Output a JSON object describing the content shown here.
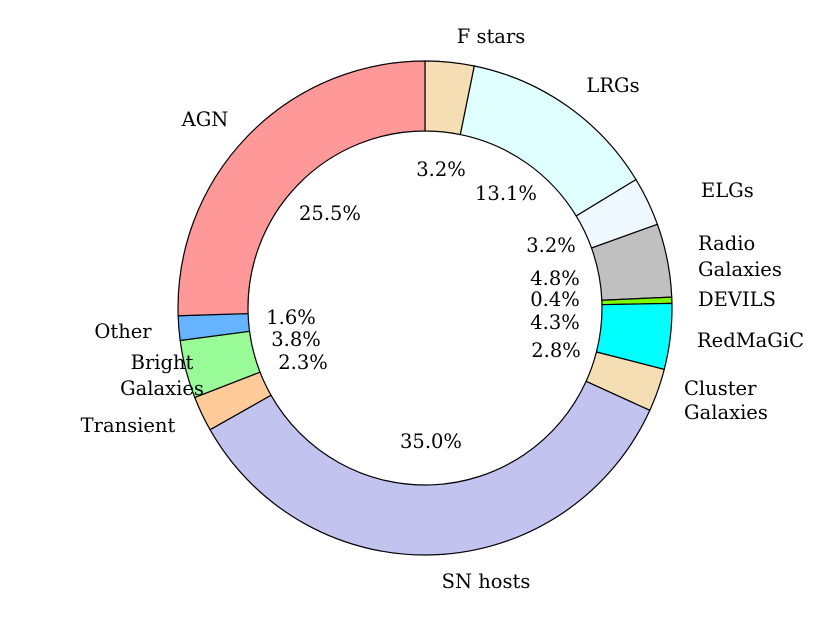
{
  "chart_data": {
    "type": "pie",
    "donut": true,
    "start_angle_deg": 90,
    "direction": "clockwise",
    "slices": [
      {
        "label": "F stars",
        "value": 3.2,
        "pct_label": "3.2%",
        "color": "#f5deb3"
      },
      {
        "label": "LRGs",
        "value": 13.1,
        "pct_label": "13.1%",
        "color": "#e0ffff"
      },
      {
        "label": "ELGs",
        "value": 3.2,
        "pct_label": "3.2%",
        "color": "#f0f8ff"
      },
      {
        "label": "Radio Galaxies",
        "value": 4.8,
        "pct_label": "4.8%",
        "color": "#c0c0c0"
      },
      {
        "label": "DEVILS",
        "value": 0.4,
        "pct_label": "0.4%",
        "color": "#7cfc00"
      },
      {
        "label": "RedMaGiC",
        "value": 4.3,
        "pct_label": "4.3%",
        "color": "#00ffff"
      },
      {
        "label": "Cluster Galaxies",
        "value": 2.8,
        "pct_label": "2.8%",
        "color": "#f5deb3"
      },
      {
        "label": "SN hosts",
        "value": 35.0,
        "pct_label": "35.0%",
        "color": "#c3c3f0"
      },
      {
        "label": "Transient",
        "value": 2.3,
        "pct_label": "2.3%",
        "color": "#ffcc99"
      },
      {
        "label": "Bright Galaxies",
        "value": 3.8,
        "pct_label": "3.8%",
        "color": "#98fb98"
      },
      {
        "label": "Other",
        "value": 1.6,
        "pct_label": "1.6%",
        "color": "#66b3ff"
      },
      {
        "label": "AGN",
        "value": 25.5,
        "pct_label": "25.5%",
        "color": "#ff9999"
      }
    ]
  }
}
